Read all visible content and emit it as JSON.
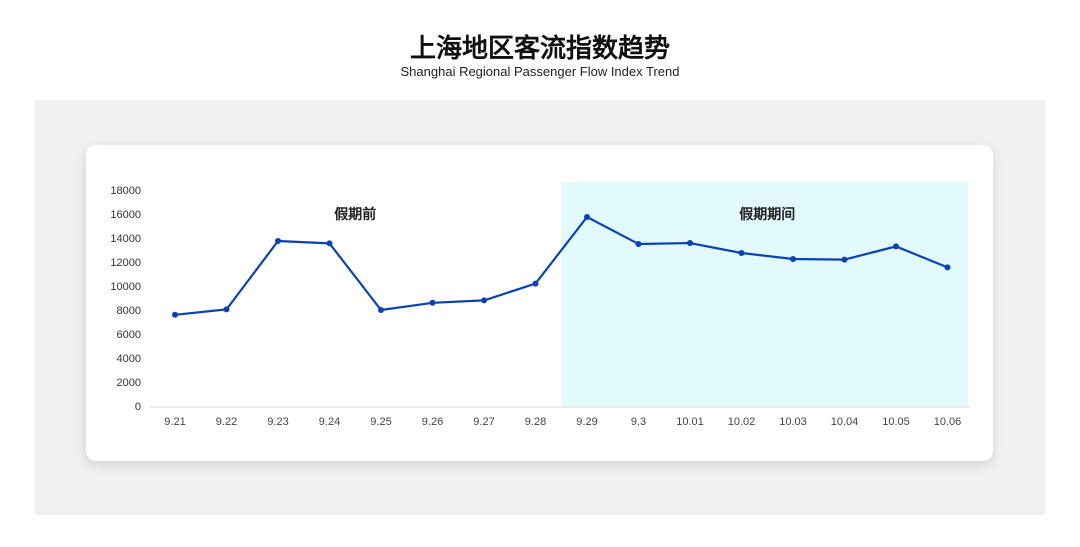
{
  "header": {
    "title": "上海地区客流指数趋势",
    "subtitle": "Shanghai Regional Passenger Flow Index Trend"
  },
  "chart_data": {
    "type": "line",
    "title": "上海地区客流指数趋势",
    "subtitle": "Shanghai Regional Passenger Flow Index Trend",
    "categories": [
      "9.21",
      "9.22",
      "9.23",
      "9.24",
      "9.25",
      "9.26",
      "9.27",
      "9.28",
      "9.29",
      "9.3",
      "10.01",
      "10.02",
      "10.03",
      "10.04",
      "10.05",
      "10.06"
    ],
    "series": [
      {
        "values": [
          7600,
          8050,
          13750,
          13550,
          8000,
          8600,
          8800,
          10200,
          15750,
          13500,
          13580,
          12750,
          12250,
          12200,
          13300,
          11550
        ],
        "color": "#0a41b4"
      }
    ],
    "ylim": [
      0,
      18000
    ],
    "yticks": [
      0,
      2000,
      4000,
      6000,
      8000,
      10000,
      12000,
      14000,
      16000,
      18000
    ],
    "grid": false,
    "annotations": [
      {
        "label": "假期前",
        "range": [
          "9.21",
          "9.28"
        ],
        "shaded": false
      },
      {
        "label": "假期期间",
        "range": [
          "9.29",
          "10.06"
        ],
        "shaded": true,
        "color": "#e3fafd"
      }
    ]
  }
}
